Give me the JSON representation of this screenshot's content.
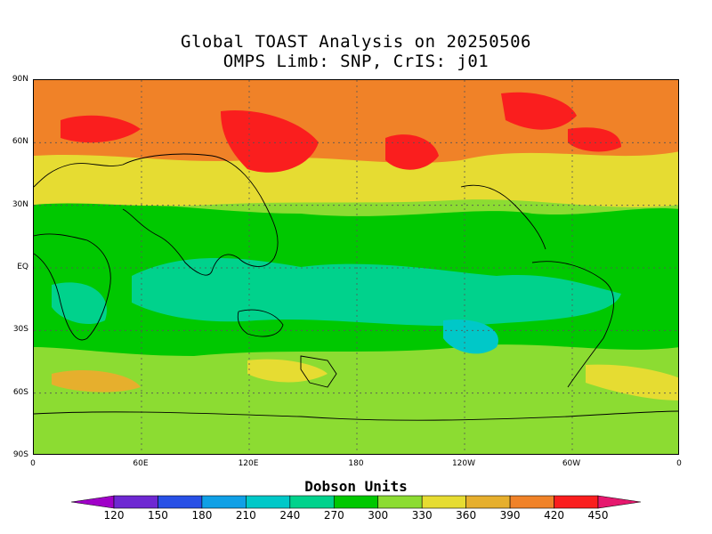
{
  "title": {
    "line1": "Global TOAST Analysis on 20250506",
    "line2": "OMPS Limb: SNP,  CrIS: j01"
  },
  "axes": {
    "lat_ticks": [
      "90N",
      "60N",
      "30N",
      "EQ",
      "30S",
      "60S",
      "90S"
    ],
    "lon_ticks": [
      "0",
      "60E",
      "120E",
      "180",
      "120W",
      "60W",
      "0"
    ]
  },
  "colorbar": {
    "units": "Dobson Units",
    "ticks": [
      "120",
      "150",
      "180",
      "210",
      "240",
      "270",
      "300",
      "330",
      "360",
      "390",
      "420",
      "450"
    ],
    "colors": [
      "#a000c8",
      "#6e28d2",
      "#2850e6",
      "#10a0e6",
      "#00c8c8",
      "#00d28c",
      "#00c800",
      "#8cdc32",
      "#e6dc32",
      "#e6af2d",
      "#f08228",
      "#fa1e1e",
      "#e6186e"
    ],
    "range_dobson": [
      120,
      450
    ]
  },
  "map": {
    "projection": "cylindrical-equidistant",
    "grid": "dotted 30° graticule",
    "field": "total column ozone (Dobson Units)"
  }
}
